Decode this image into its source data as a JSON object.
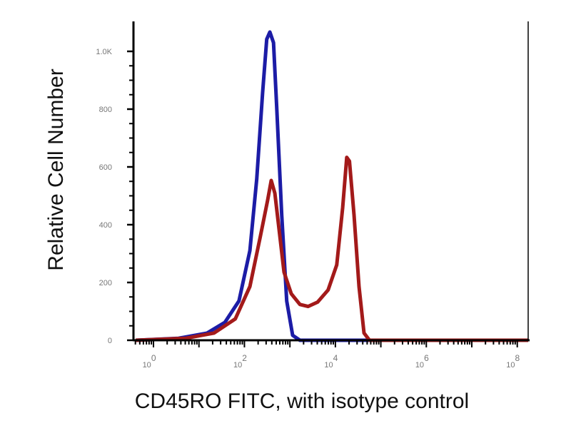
{
  "chart_data": {
    "type": "line",
    "title": "",
    "xlabel": "CD45RO FITC, with isotype control",
    "ylabel": "Relative Cell Number",
    "x_scale": "log10",
    "xlim_log10": [
      -0.44,
      8.24
    ],
    "ylim": [
      0,
      1100
    ],
    "grid": false,
    "legend": "none",
    "x_ticks": [
      {
        "exp": 0,
        "label_base": "10",
        "label_exp": "0"
      },
      {
        "exp": 2,
        "label_base": "10",
        "label_exp": "2"
      },
      {
        "exp": 4,
        "label_base": "10",
        "label_exp": "4"
      },
      {
        "exp": 6,
        "label_base": "10",
        "label_exp": "6"
      },
      {
        "exp": 8,
        "label_base": "10",
        "label_exp": "8"
      }
    ],
    "y_ticks": [
      {
        "value": 0,
        "label": "0"
      },
      {
        "value": 200,
        "label": "200"
      },
      {
        "value": 400,
        "label": "400"
      },
      {
        "value": 600,
        "label": "600"
      },
      {
        "value": 800,
        "label": "800"
      },
      {
        "value": 1000,
        "label": "1.0K"
      }
    ],
    "series": [
      {
        "color": "#1c1ca6",
        "points_log10x_count": [
          [
            -0.39,
            0
          ],
          [
            0.55,
            7
          ],
          [
            1.18,
            25
          ],
          [
            1.57,
            62
          ],
          [
            1.88,
            136
          ],
          [
            2.12,
            310
          ],
          [
            2.27,
            558
          ],
          [
            2.4,
            856
          ],
          [
            2.49,
            1042
          ],
          [
            2.56,
            1067
          ],
          [
            2.64,
            1030
          ],
          [
            2.71,
            806
          ],
          [
            2.82,
            434
          ],
          [
            2.93,
            136
          ],
          [
            3.06,
            17
          ],
          [
            3.22,
            0
          ],
          [
            8.24,
            0
          ]
        ]
      },
      {
        "color": "#a31a1a",
        "points_log10x_count": [
          [
            -0.39,
            0
          ],
          [
            0.71,
            7
          ],
          [
            1.33,
            25
          ],
          [
            1.8,
            74
          ],
          [
            2.12,
            186
          ],
          [
            2.35,
            360
          ],
          [
            2.51,
            484
          ],
          [
            2.59,
            553
          ],
          [
            2.67,
            509
          ],
          [
            2.78,
            360
          ],
          [
            2.87,
            236
          ],
          [
            3.03,
            161
          ],
          [
            3.22,
            124
          ],
          [
            3.4,
            117
          ],
          [
            3.61,
            132
          ],
          [
            3.84,
            174
          ],
          [
            4.03,
            261
          ],
          [
            4.16,
            459
          ],
          [
            4.25,
            633
          ],
          [
            4.31,
            620
          ],
          [
            4.41,
            434
          ],
          [
            4.52,
            186
          ],
          [
            4.63,
            25
          ],
          [
            4.75,
            0
          ],
          [
            8.24,
            0
          ]
        ]
      }
    ]
  }
}
